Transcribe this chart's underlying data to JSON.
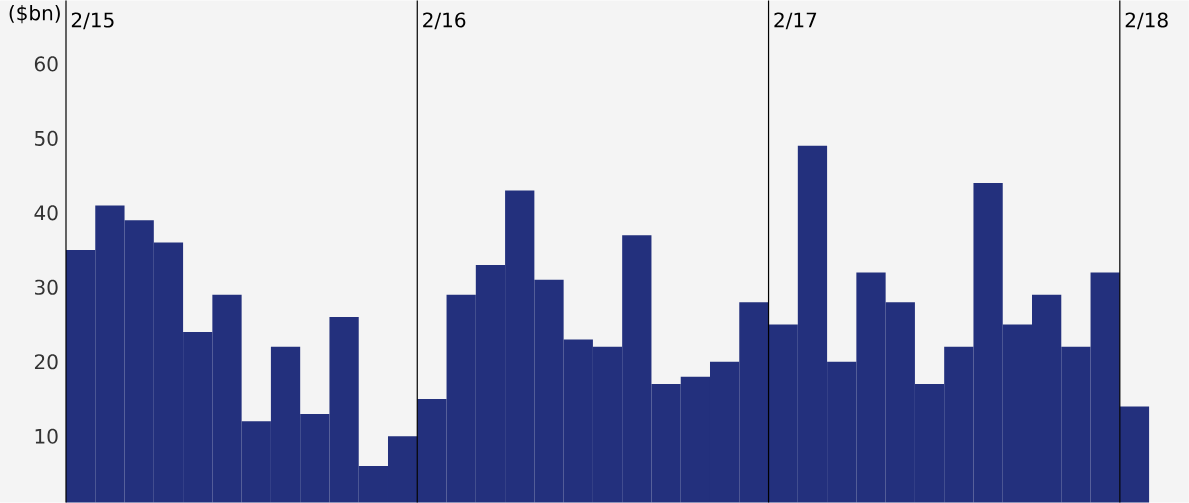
{
  "chart_data": {
    "type": "bar",
    "ylabel": "($bn)",
    "categories": [
      "2/15",
      null,
      null,
      null,
      null,
      null,
      null,
      null,
      null,
      null,
      null,
      null,
      "2/16",
      null,
      null,
      null,
      null,
      null,
      null,
      null,
      null,
      null,
      null,
      null,
      "2/17",
      null,
      null,
      null,
      null,
      null,
      null,
      null,
      null,
      null,
      null,
      null,
      "2/18"
    ],
    "values": [
      35,
      41,
      39,
      36,
      24,
      29,
      12,
      22,
      13,
      26,
      6,
      10,
      15,
      29,
      33,
      43,
      31,
      23,
      22,
      37,
      17,
      18,
      20,
      28,
      25,
      49,
      20,
      32,
      28,
      17,
      22,
      44,
      25,
      29,
      22,
      32,
      14
    ],
    "color": "#23307d",
    "ylim": [
      1.1,
      68.5
    ],
    "yticks": [
      10,
      20,
      30,
      40,
      50,
      60
    ],
    "grid": "x"
  }
}
